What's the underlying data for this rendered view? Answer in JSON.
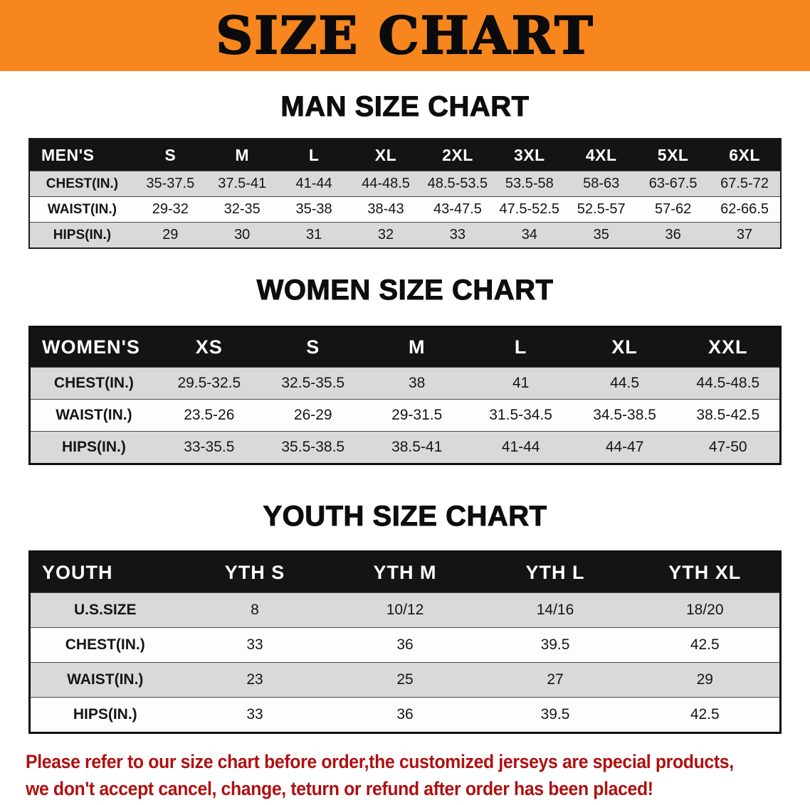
{
  "banner": {
    "title": "SIZE CHART",
    "bg_color": "#F6861D"
  },
  "sections": [
    {
      "id": "men",
      "heading": "MAN SIZE CHART",
      "columns": [
        "MEN'S",
        "S",
        "M",
        "L",
        "XL",
        "2XL",
        "3XL",
        "4XL",
        "5XL",
        "6XL"
      ],
      "rows": [
        {
          "label": "CHEST(IN.)",
          "values": [
            "35-37.5",
            "37.5-41",
            "41-44",
            "44-48.5",
            "48.5-53.5",
            "53.5-58",
            "58-63",
            "63-67.5",
            "67.5-72"
          ]
        },
        {
          "label": "WAIST(IN.)",
          "values": [
            "29-32",
            "32-35",
            "35-38",
            "38-43",
            "43-47.5",
            "47.5-52.5",
            "52.5-57",
            "57-62",
            "62-66.5"
          ]
        },
        {
          "label": "HIPS(IN.)",
          "values": [
            "29",
            "30",
            "31",
            "32",
            "33",
            "34",
            "35",
            "36",
            "37"
          ]
        }
      ]
    },
    {
      "id": "women",
      "heading": "WOMEN SIZE CHART",
      "columns": [
        "WOMEN'S",
        "XS",
        "S",
        "M",
        "L",
        "XL",
        "XXL"
      ],
      "rows": [
        {
          "label": "CHEST(IN.)",
          "values": [
            "29.5-32.5",
            "32.5-35.5",
            "38",
            "41",
            "44.5",
            "44.5-48.5"
          ]
        },
        {
          "label": "WAIST(IN.)",
          "values": [
            "23.5-26",
            "26-29",
            "29-31.5",
            "31.5-34.5",
            "34.5-38.5",
            "38.5-42.5"
          ]
        },
        {
          "label": "HIPS(IN.)",
          "values": [
            "33-35.5",
            "35.5-38.5",
            "38.5-41",
            "41-44",
            "44-47",
            "47-50"
          ]
        }
      ]
    },
    {
      "id": "youth",
      "heading": "YOUTH SIZE CHART",
      "columns": [
        "YOUTH",
        "YTH S",
        "YTH M",
        "YTH L",
        "YTH XL"
      ],
      "rows": [
        {
          "label": "U.S.SIZE",
          "values": [
            "8",
            "10/12",
            "14/16",
            "18/20"
          ]
        },
        {
          "label": "CHEST(IN.)",
          "values": [
            "33",
            "36",
            "39.5",
            "42.5"
          ]
        },
        {
          "label": "WAIST(IN.)",
          "values": [
            "23",
            "25",
            "27",
            "29"
          ]
        },
        {
          "label": "HIPS(IN.)",
          "values": [
            "33",
            "36",
            "39.5",
            "42.5"
          ]
        }
      ]
    }
  ],
  "disclaimer": {
    "line1": "Please refer to our size chart before order,the customized jerseys are special products,",
    "line2": "we don't accept cancel, change, teturn or refund after order has been placed!",
    "color": "#B01010"
  },
  "colors": {
    "banner_bg": "#F6861D",
    "header_row_bg": "#141414",
    "stripe_row_bg": "#D9D9D9",
    "plain_row_bg": "#FDFDFD"
  }
}
